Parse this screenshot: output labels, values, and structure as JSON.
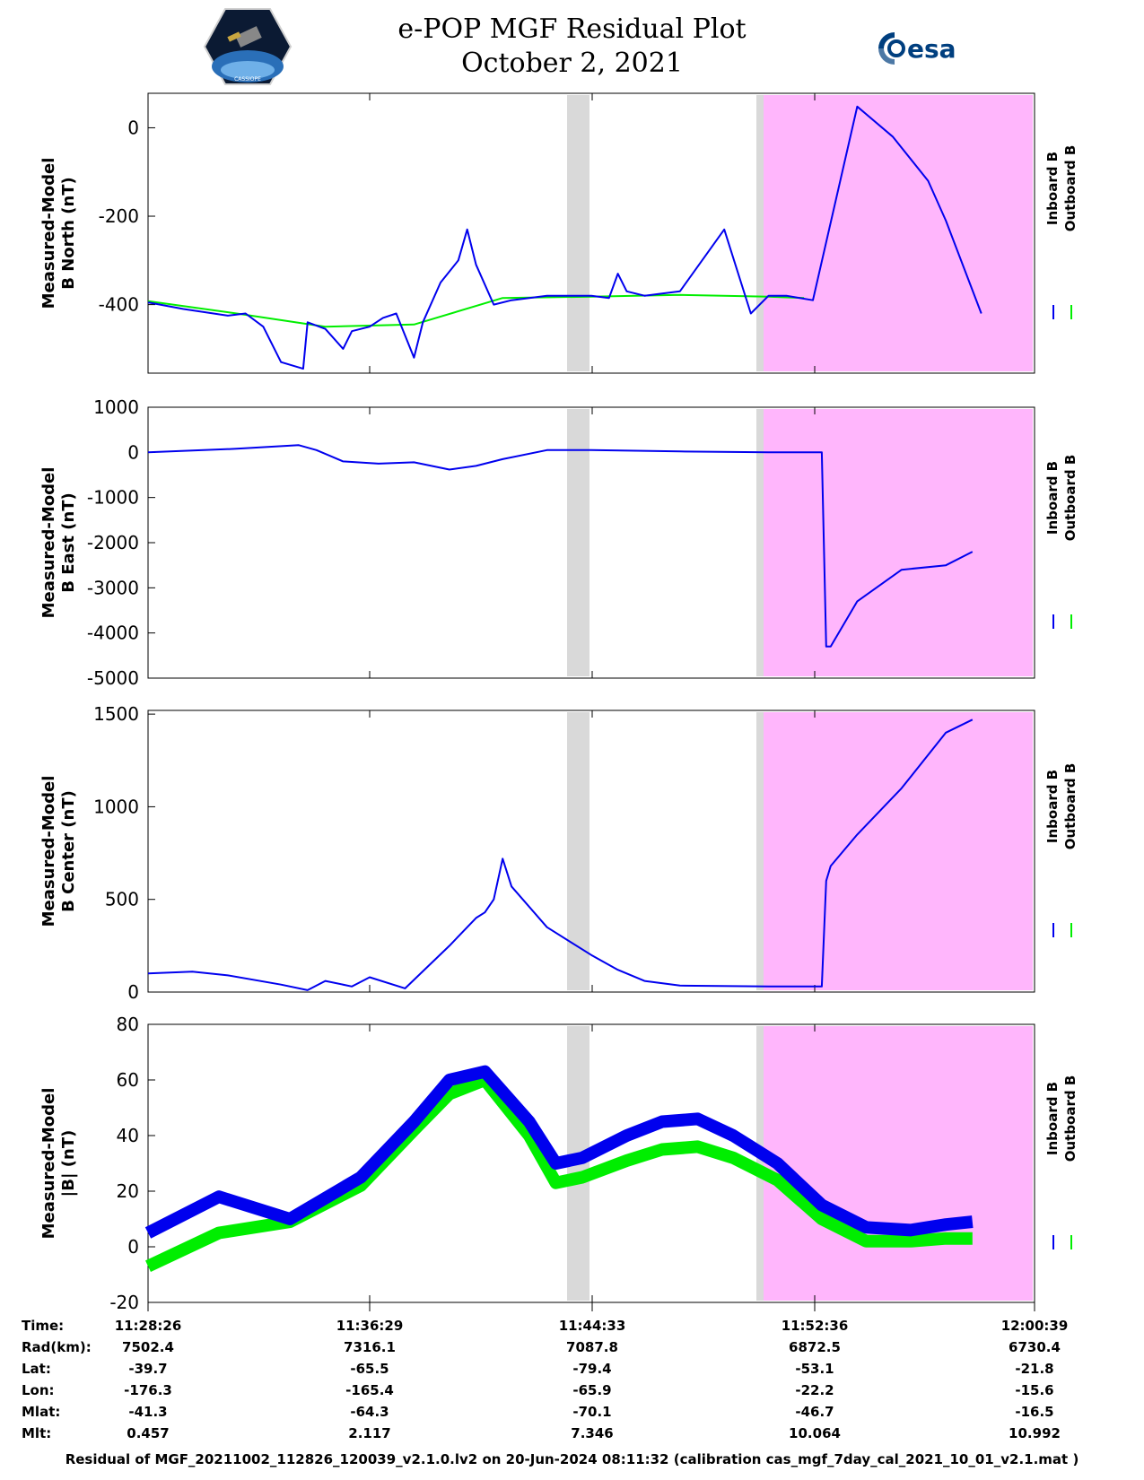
{
  "header": {
    "title": "e-POP MGF Residual Plot",
    "date": "October 2, 2021",
    "logo_left_text": "CASSIOPE",
    "logo_right_text": "esa"
  },
  "colors": {
    "inboard": "#0000ee",
    "outboard": "#00ee00",
    "gap_shade": "#d9d9d9",
    "highlight_shade": "#ffb6fc"
  },
  "legend": {
    "inboard": "Inboard B",
    "outboard": "Outboard B"
  },
  "chart_data": [
    {
      "type": "line",
      "ylabel_line1": "Measured-Model",
      "ylabel_line2": "B North (nT)",
      "ylim": [
        -555,
        78
      ],
      "yticks": [
        0,
        -200,
        -400
      ],
      "series": [
        {
          "name": "Inboard B",
          "x": [
            0,
            0.04,
            0.09,
            0.11,
            0.13,
            0.15,
            0.175,
            0.18,
            0.2,
            0.22,
            0.23,
            0.25,
            0.265,
            0.28,
            0.3,
            0.31,
            0.33,
            0.35,
            0.36,
            0.37,
            0.39,
            0.41,
            0.45,
            0.5,
            0.52,
            0.53,
            0.54,
            0.56,
            0.6,
            0.65,
            0.68,
            0.7,
            0.72,
            0.75,
            0.8,
            0.84,
            0.88,
            0.9,
            0.94
          ],
          "y": [
            -395,
            -410,
            -425,
            -420,
            -450,
            -530,
            -545,
            -440,
            -455,
            -500,
            -460,
            -450,
            -430,
            -420,
            -520,
            -440,
            -350,
            -300,
            -230,
            -310,
            -400,
            -390,
            -380,
            -380,
            -385,
            -330,
            -370,
            -380,
            -370,
            -230,
            -420,
            -380,
            -380,
            -390,
            48,
            -20,
            -120,
            -210,
            -420
          ]
        },
        {
          "name": "Outboard B",
          "x": [
            0,
            0.1,
            0.2,
            0.3,
            0.4,
            0.5,
            0.6,
            0.7,
            0.74
          ],
          "y": [
            -392,
            -420,
            -450,
            -445,
            -385,
            -382,
            -378,
            -382,
            -385
          ]
        }
      ]
    },
    {
      "type": "line",
      "ylabel_line1": "Measured-Model",
      "ylabel_line2": "B East (nT)",
      "ylim": [
        -5000,
        1000
      ],
      "yticks": [
        1000,
        0,
        -1000,
        -2000,
        -3000,
        -4000,
        -5000
      ],
      "series": [
        {
          "name": "Inboard B",
          "x": [
            0,
            0.1,
            0.17,
            0.19,
            0.22,
            0.26,
            0.3,
            0.34,
            0.37,
            0.4,
            0.45,
            0.5,
            0.6,
            0.7,
            0.76,
            0.765,
            0.77,
            0.8,
            0.85,
            0.9,
            0.93
          ],
          "y": [
            0,
            80,
            160,
            50,
            -200,
            -250,
            -220,
            -380,
            -300,
            -150,
            50,
            50,
            20,
            0,
            0,
            -4300,
            -4300,
            -3300,
            -2600,
            -2500,
            -2200
          ]
        }
      ]
    },
    {
      "type": "line",
      "ylabel_line1": "Measured-Model",
      "ylabel_line2": "B Center (nT)",
      "ylim": [
        0,
        1520
      ],
      "yticks": [
        1500,
        1000,
        500,
        0
      ],
      "series": [
        {
          "name": "Inboard B",
          "x": [
            0,
            0.05,
            0.09,
            0.15,
            0.18,
            0.2,
            0.23,
            0.25,
            0.29,
            0.34,
            0.37,
            0.38,
            0.39,
            0.4,
            0.41,
            0.45,
            0.5,
            0.53,
            0.56,
            0.6,
            0.7,
            0.76,
            0.765,
            0.77,
            0.8,
            0.85,
            0.9,
            0.93
          ],
          "y": [
            100,
            110,
            90,
            40,
            10,
            60,
            30,
            80,
            20,
            250,
            400,
            430,
            500,
            720,
            570,
            350,
            200,
            120,
            60,
            35,
            30,
            30,
            600,
            680,
            850,
            1100,
            1400,
            1470
          ]
        }
      ]
    },
    {
      "type": "line",
      "ylabel_line1": "Measured-Model",
      "ylabel_line2": "|B| (nT)",
      "ylim": [
        -20,
        80
      ],
      "yticks": [
        80,
        60,
        40,
        20,
        0,
        -20
      ],
      "series": [
        {
          "name": "Inboard B",
          "x": [
            0,
            0.08,
            0.16,
            0.24,
            0.3,
            0.34,
            0.38,
            0.43,
            0.46,
            0.49,
            0.54,
            0.58,
            0.62,
            0.66,
            0.71,
            0.76,
            0.81,
            0.86,
            0.9,
            0.93
          ],
          "y": [
            5,
            18,
            10,
            25,
            45,
            60,
            63,
            45,
            30,
            32,
            40,
            45,
            46,
            40,
            30,
            15,
            7,
            6,
            8,
            9
          ]
        },
        {
          "name": "Outboard B",
          "x": [
            0,
            0.08,
            0.16,
            0.24,
            0.3,
            0.34,
            0.38,
            0.43,
            0.46,
            0.49,
            0.54,
            0.58,
            0.62,
            0.66,
            0.71,
            0.76,
            0.81,
            0.86,
            0.9,
            0.93
          ],
          "y": [
            -7,
            5,
            9,
            22,
            42,
            55,
            60,
            40,
            23,
            25,
            31,
            35,
            36,
            32,
            24,
            10,
            2,
            2,
            3,
            3
          ]
        }
      ]
    }
  ],
  "x_axis": {
    "rows": [
      {
        "label": "Time:",
        "values": [
          "11:28:26",
          "11:36:29",
          "11:44:33",
          "11:52:36",
          "12:00:39"
        ]
      },
      {
        "label": "Rad(km):",
        "values": [
          "7502.4",
          "7316.1",
          "7087.8",
          "6872.5",
          "6730.4"
        ]
      },
      {
        "label": "Lat:",
        "values": [
          "-39.7",
          "-65.5",
          "-79.4",
          "-53.1",
          "-21.8"
        ]
      },
      {
        "label": "Lon:",
        "values": [
          "-176.3",
          "-165.4",
          "-65.9",
          "-22.2",
          "-15.6"
        ]
      },
      {
        "label": "Mlat:",
        "values": [
          "-41.3",
          "-64.3",
          "-70.1",
          "-46.7",
          "-16.5"
        ]
      },
      {
        "label": "Mlt:",
        "values": [
          "0.457",
          "2.117",
          "7.346",
          "10.064",
          "10.992"
        ]
      }
    ]
  },
  "footer": "Residual of MGF_20211002_112826_120039_v2.1.0.lv2 on 20-Jun-2024 08:11:32 (calibration cas_mgf_7day_cal_2021_10_01_v2.1.mat )"
}
